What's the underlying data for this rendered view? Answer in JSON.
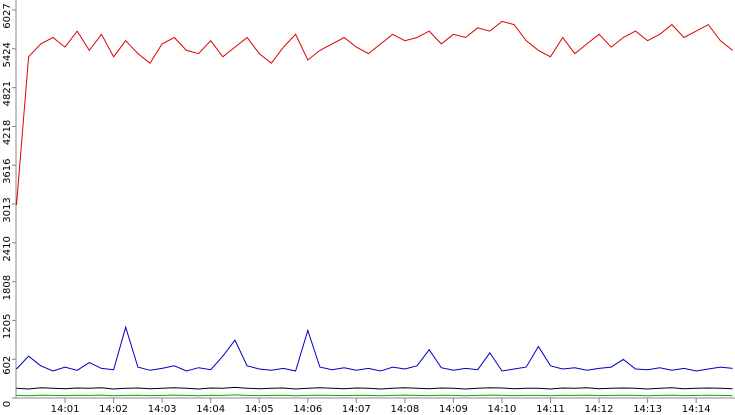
{
  "chart_data": {
    "type": "line",
    "x": [
      0,
      0.25,
      0.5,
      0.75,
      1,
      1.25,
      1.5,
      1.75,
      2,
      2.25,
      2.5,
      2.75,
      3,
      3.25,
      3.5,
      3.75,
      4,
      4.25,
      4.5,
      4.75,
      5,
      5.25,
      5.5,
      5.75,
      6,
      6.25,
      6.5,
      6.75,
      7,
      7.25,
      7.5,
      7.75,
      8,
      8.25,
      8.5,
      8.75,
      9,
      9.25,
      9.5,
      9.75,
      10,
      10.25,
      10.5,
      10.75,
      11,
      11.25,
      11.5,
      11.75,
      12,
      12.25,
      12.5,
      12.75,
      13,
      13.25,
      13.5,
      13.75,
      14,
      14.25,
      14.5,
      14.75
    ],
    "series": [
      {
        "color": "#e00000",
        "values": [
          3000,
          5300,
          5500,
          5600,
          5450,
          5700,
          5400,
          5650,
          5300,
          5550,
          5350,
          5200,
          5500,
          5600,
          5400,
          5350,
          5550,
          5300,
          5450,
          5600,
          5350,
          5200,
          5450,
          5650,
          5250,
          5400,
          5500,
          5600,
          5450,
          5350,
          5500,
          5650,
          5550,
          5600,
          5700,
          5500,
          5650,
          5600,
          5750,
          5700,
          5850,
          5800,
          5550,
          5400,
          5300,
          5600,
          5350,
          5500,
          5650,
          5450,
          5600,
          5700,
          5550,
          5650,
          5800,
          5600,
          5700,
          5800,
          5550,
          5400
        ]
      },
      {
        "color": "#0000c0",
        "values": [
          450,
          650,
          500,
          420,
          480,
          430,
          550,
          460,
          440,
          1100,
          480,
          430,
          460,
          500,
          420,
          470,
          440,
          650,
          900,
          500,
          450,
          430,
          460,
          420,
          1050,
          480,
          440,
          470,
          430,
          460,
          420,
          480,
          450,
          500,
          750,
          470,
          430,
          460,
          440,
          700,
          420,
          450,
          480,
          800,
          500,
          450,
          470,
          430,
          460,
          480,
          600,
          450,
          440,
          470,
          430,
          460,
          420,
          450,
          480,
          460
        ]
      },
      {
        "color": "#000000",
        "values": [
          150,
          140,
          160,
          150,
          145,
          155,
          150,
          160,
          140,
          150,
          155,
          145,
          150,
          160,
          150,
          140,
          155,
          150,
          165,
          150,
          145,
          150,
          155,
          140,
          150,
          160,
          150,
          145,
          155,
          150,
          140,
          150,
          160,
          150,
          145,
          155,
          150,
          140,
          150,
          160,
          155,
          145,
          150,
          150,
          140,
          155,
          150,
          160,
          145,
          150,
          155,
          150,
          140,
          150,
          160,
          145,
          150,
          155,
          150,
          145
        ]
      },
      {
        "color": "#00b000",
        "values": [
          40,
          35,
          45,
          40,
          38,
          42,
          40,
          45,
          35,
          40,
          42,
          38,
          40,
          45,
          40,
          35,
          42,
          40,
          48,
          40,
          38,
          40,
          42,
          35,
          40,
          45,
          40,
          38,
          42,
          40,
          35,
          40,
          45,
          40,
          38,
          42,
          40,
          35,
          40,
          45,
          42,
          38,
          40,
          40,
          35,
          42,
          40,
          45,
          38,
          40,
          42,
          40,
          35,
          40,
          45,
          38,
          40,
          42,
          40,
          38
        ]
      }
    ],
    "xlim": [
      0,
      14.8
    ],
    "xticks": [
      {
        "value": 1,
        "label": "14:01"
      },
      {
        "value": 2,
        "label": "14:02"
      },
      {
        "value": 3,
        "label": "14:03"
      },
      {
        "value": 4,
        "label": "14:04"
      },
      {
        "value": 5,
        "label": "14:05"
      },
      {
        "value": 6,
        "label": "14:06"
      },
      {
        "value": 7,
        "label": "14:07"
      },
      {
        "value": 8,
        "label": "14:08"
      },
      {
        "value": 9,
        "label": "14:09"
      },
      {
        "value": 10,
        "label": "14:10"
      },
      {
        "value": 11,
        "label": "14:11"
      },
      {
        "value": 12,
        "label": "14:12"
      },
      {
        "value": 13,
        "label": "14:13"
      },
      {
        "value": 14,
        "label": "14:14"
      }
    ],
    "ylim": [
      0,
      6027
    ],
    "yticks": [
      0,
      602,
      1205,
      1808,
      2410,
      3013,
      3616,
      4218,
      4821,
      5424,
      6027
    ]
  }
}
